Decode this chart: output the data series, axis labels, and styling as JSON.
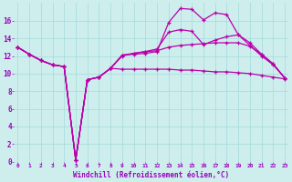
{
  "xlabel": "Windchill (Refroidissement éolien,°C)",
  "background_color": "#ceeeed",
  "grid_color": "#aadddd",
  "line_color": "#bb00aa",
  "x_hours": [
    0,
    1,
    2,
    3,
    4,
    5,
    6,
    7,
    8,
    9,
    10,
    11,
    12,
    13,
    14,
    15,
    16,
    17,
    18,
    19,
    20,
    21,
    22,
    23
  ],
  "series1": [
    13.0,
    12.2,
    11.5,
    11.0,
    10.8,
    0.2,
    9.3,
    9.6,
    10.6,
    12.1,
    12.2,
    12.3,
    12.5,
    15.8,
    17.4,
    17.3,
    16.1,
    16.9,
    16.7,
    14.4,
    13.2,
    12.0,
    11.0,
    9.5
  ],
  "series2": [
    13.0,
    12.2,
    11.5,
    11.0,
    10.8,
    0.2,
    9.3,
    9.6,
    10.6,
    12.0,
    12.3,
    12.5,
    12.8,
    14.7,
    15.0,
    14.8,
    13.3,
    13.8,
    14.2,
    14.4,
    13.5,
    12.2,
    11.1,
    9.5
  ],
  "series3": [
    13.0,
    12.2,
    11.5,
    11.0,
    10.8,
    0.2,
    9.3,
    9.6,
    10.6,
    10.5,
    10.5,
    10.5,
    10.5,
    10.5,
    10.4,
    10.4,
    10.3,
    10.2,
    10.2,
    10.1,
    10.0,
    9.8,
    9.6,
    9.4
  ],
  "series4": [
    13.0,
    12.2,
    11.5,
    11.0,
    10.8,
    0.2,
    9.3,
    9.6,
    10.6,
    12.1,
    12.3,
    12.5,
    12.6,
    13.0,
    13.2,
    13.3,
    13.4,
    13.5,
    13.5,
    13.5,
    13.1,
    12.2,
    11.1,
    9.5
  ],
  "ylim": [
    0,
    18
  ],
  "yticks": [
    0,
    2,
    4,
    6,
    8,
    10,
    12,
    14,
    16
  ],
  "xticks": [
    0,
    1,
    2,
    3,
    4,
    5,
    6,
    7,
    8,
    9,
    10,
    11,
    12,
    13,
    14,
    15,
    16,
    17,
    18,
    19,
    20,
    21,
    22,
    23
  ]
}
